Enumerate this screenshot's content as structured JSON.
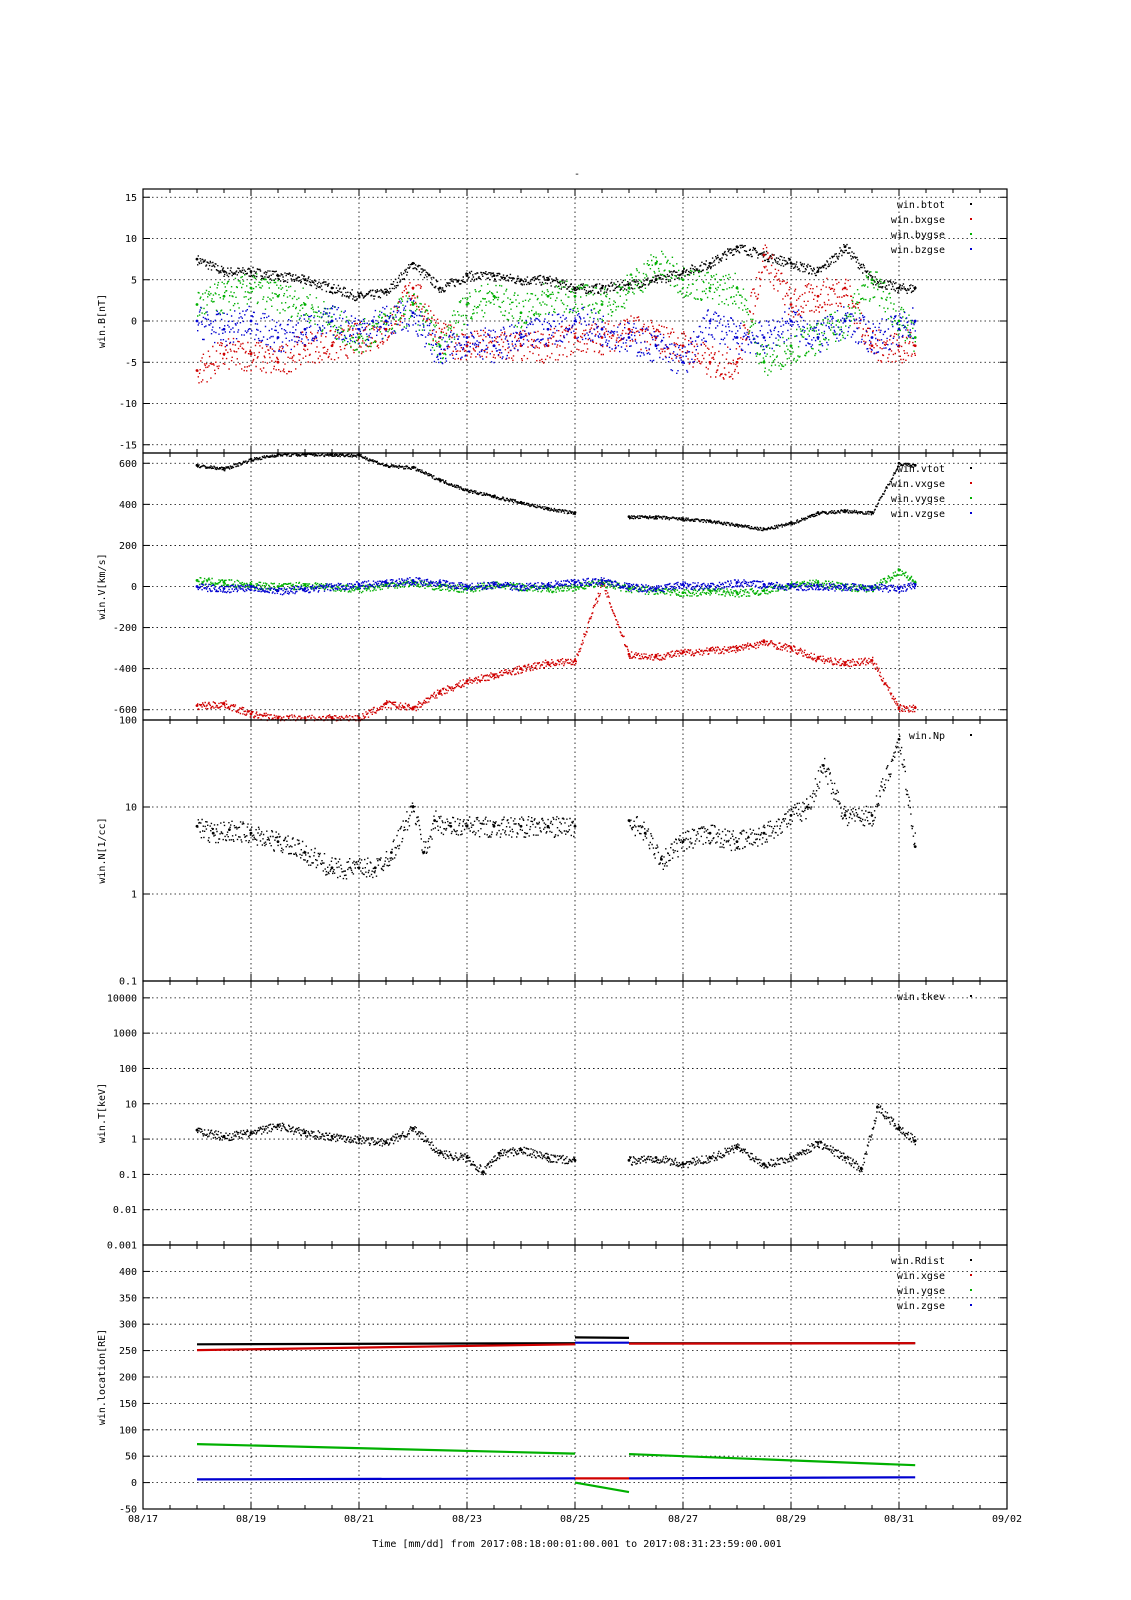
{
  "chart_data": [
    {
      "type": "scatter",
      "ylabel": "win.B[nT]",
      "ylim": [
        -16,
        16
      ],
      "yscale": "linear",
      "yticks": [
        15,
        10,
        5,
        0,
        -5,
        -10,
        -15
      ],
      "ytick_labels": [
        "15",
        "10",
        "5",
        "0",
        "-5",
        "-10",
        "-15"
      ],
      "legend_position": "top-right",
      "series": [
        {
          "name": "win.btot",
          "color": "#000000",
          "x": [
            1.0,
            1.5,
            2.0,
            2.5,
            3.0,
            3.5,
            4.0,
            4.5,
            5.0,
            5.5,
            6.0,
            6.5,
            7.0,
            7.5,
            8.0,
            8.5,
            9.0,
            9.5,
            10.0,
            10.5,
            11.0,
            11.5,
            12.0,
            12.5,
            13.0,
            13.5,
            14.0,
            14.3
          ],
          "y": [
            7.5,
            6,
            6,
            5.5,
            5,
            4,
            3,
            3.5,
            7,
            4,
            5.5,
            5.5,
            5,
            5,
            4,
            4,
            4.5,
            5,
            6,
            7,
            9,
            8,
            7,
            6,
            9,
            5,
            4,
            4
          ]
        },
        {
          "name": "win.bxgse",
          "color": "#d00000",
          "x": [
            1.0,
            1.5,
            2.0,
            2.5,
            3.0,
            3.5,
            4.0,
            4.5,
            5.0,
            5.5,
            6.0,
            6.5,
            7.0,
            7.5,
            8.0,
            8.5,
            9.0,
            9.5,
            10.0,
            10.5,
            11.0,
            11.5,
            12.0,
            12.5,
            13.0,
            13.5,
            14.0,
            14.3
          ],
          "y": [
            -6,
            -4,
            -4,
            -5,
            -3,
            -3,
            -2,
            -1,
            4,
            -2,
            -3,
            -3,
            -3,
            -3,
            -2,
            -2,
            -1,
            -2,
            -3,
            -5,
            -5,
            8,
            2,
            3,
            4,
            -3,
            -3,
            -3
          ]
        },
        {
          "name": "win.bygse",
          "color": "#00b000",
          "x": [
            1.0,
            1.5,
            2.0,
            2.5,
            3.0,
            3.5,
            4.0,
            4.5,
            5.0,
            5.5,
            6.0,
            6.5,
            7.0,
            7.5,
            8.0,
            8.5,
            9.0,
            9.5,
            10.0,
            10.5,
            11.0,
            11.5,
            12.0,
            12.5,
            13.0,
            13.5,
            14.0,
            14.3
          ],
          "y": [
            2,
            3,
            4,
            3,
            2,
            0,
            -2,
            0,
            2,
            -3,
            2,
            3,
            1,
            3,
            3,
            2,
            4,
            7,
            5,
            4,
            4,
            -5,
            -3,
            -2,
            0,
            5,
            0,
            -2
          ]
        },
        {
          "name": "win.bzgse",
          "color": "#0000d0",
          "x": [
            1.0,
            1.5,
            2.0,
            2.5,
            3.0,
            3.5,
            4.0,
            4.5,
            5.0,
            5.5,
            6.0,
            6.5,
            7.0,
            7.5,
            8.0,
            8.5,
            9.0,
            9.5,
            10.0,
            10.5,
            11.0,
            11.5,
            12.0,
            12.5,
            13.0,
            13.5,
            14.0,
            14.3
          ],
          "y": [
            0,
            -1,
            0,
            -2,
            -1,
            0,
            -1,
            0,
            1,
            -4,
            -2,
            -3,
            -2,
            -1,
            0,
            -1,
            -2,
            -3,
            -5,
            0,
            -2,
            -2,
            0,
            -2,
            0,
            -2,
            -1,
            0
          ]
        }
      ]
    },
    {
      "type": "scatter",
      "ylabel": "win.V[km/s]",
      "ylim": [
        -650,
        650
      ],
      "yscale": "linear",
      "yticks": [
        600,
        400,
        200,
        0,
        -200,
        -400,
        -600
      ],
      "ytick_labels": [
        "600",
        "400",
        "200",
        "0",
        "-200",
        "-400",
        "-600"
      ],
      "legend_position": "top-right",
      "series": [
        {
          "name": "win.vtot",
          "color": "#000000",
          "x": [
            1.0,
            1.5,
            2.0,
            2.5,
            3.0,
            3.5,
            4.0,
            4.5,
            5.0,
            5.5,
            6.0,
            6.5,
            7.0,
            7.5,
            8.0,
            null,
            9.0,
            9.5,
            10.0,
            10.5,
            11.0,
            11.5,
            12.0,
            12.5,
            13.0,
            13.5,
            14.0,
            14.3
          ],
          "y": [
            590,
            575,
            620,
            645,
            645,
            645,
            640,
            590,
            580,
            520,
            470,
            440,
            410,
            380,
            360,
            null,
            340,
            340,
            330,
            320,
            300,
            280,
            310,
            360,
            370,
            360,
            600,
            590
          ]
        },
        {
          "name": "win.vxgse",
          "color": "#d00000",
          "x": [
            1.0,
            1.5,
            2.0,
            2.5,
            3.0,
            3.5,
            4.0,
            4.5,
            5.0,
            5.5,
            6.0,
            6.5,
            7.0,
            7.5,
            8.0,
            8.5,
            9.0,
            9.5,
            10.0,
            10.5,
            11.0,
            11.5,
            12.0,
            12.5,
            13.0,
            13.5,
            14.0,
            14.3
          ],
          "y": [
            -580,
            -570,
            -620,
            -640,
            -640,
            -640,
            -640,
            -570,
            -590,
            -510,
            -460,
            -430,
            -400,
            -370,
            -360,
            20,
            -330,
            -340,
            -320,
            -310,
            -300,
            -270,
            -300,
            -350,
            -370,
            -360,
            -590,
            -590
          ]
        },
        {
          "name": "win.vygse",
          "color": "#00b000",
          "x": [
            1.0,
            1.5,
            2.0,
            2.5,
            3.0,
            3.5,
            4.0,
            4.5,
            5.0,
            5.5,
            6.0,
            6.5,
            7.0,
            7.5,
            8.0,
            8.5,
            9.0,
            9.5,
            10.0,
            10.5,
            11.0,
            11.5,
            12.0,
            12.5,
            13.0,
            13.5,
            14.0,
            14.3
          ],
          "y": [
            30,
            20,
            10,
            0,
            10,
            0,
            -10,
            10,
            20,
            0,
            -10,
            10,
            0,
            -10,
            0,
            20,
            -10,
            -20,
            -30,
            -20,
            -30,
            -20,
            10,
            20,
            0,
            -10,
            80,
            20
          ]
        },
        {
          "name": "win.vzgse",
          "color": "#0000d0",
          "x": [
            1.0,
            1.5,
            2.0,
            2.5,
            3.0,
            3.5,
            4.0,
            4.5,
            5.0,
            5.5,
            6.0,
            6.5,
            7.0,
            7.5,
            8.0,
            8.5,
            9.0,
            9.5,
            10.0,
            10.5,
            11.0,
            11.5,
            12.0,
            12.5,
            13.0,
            13.5,
            14.0,
            14.3
          ],
          "y": [
            0,
            -10,
            0,
            -20,
            -10,
            0,
            10,
            20,
            30,
            20,
            0,
            10,
            0,
            10,
            20,
            30,
            0,
            -10,
            10,
            0,
            20,
            10,
            0,
            0,
            0,
            0,
            -10,
            10
          ]
        }
      ]
    },
    {
      "type": "scatter",
      "ylabel": "win.N[1/cc]",
      "ylim": [
        0.1,
        100
      ],
      "yscale": "log",
      "yticks": [
        100,
        10,
        1,
        0.1
      ],
      "ytick_labels": [
        "100",
        "10",
        "1",
        "0.1"
      ],
      "legend_position": "top-right",
      "series": [
        {
          "name": "win.Np",
          "color": "#000000",
          "x": [
            1.0,
            1.3,
            1.6,
            2.0,
            2.5,
            3.0,
            3.5,
            4.0,
            4.3,
            4.6,
            5.0,
            5.2,
            5.4,
            5.7,
            6.0,
            6.5,
            7.0,
            7.5,
            8.0,
            null,
            9.0,
            9.3,
            9.6,
            10.0,
            10.5,
            11.0,
            11.5,
            12.0,
            12.3,
            12.6,
            13.0,
            13.5,
            14.0,
            14.3
          ],
          "y": [
            6,
            5,
            5.5,
            5,
            4,
            3,
            2,
            2,
            2,
            3,
            10,
            3,
            7,
            6,
            6,
            6,
            6,
            6,
            6,
            null,
            7,
            5,
            2.5,
            4,
            5,
            4,
            5,
            8,
            10,
            30,
            8,
            8,
            60,
            3.5
          ]
        }
      ]
    },
    {
      "type": "scatter",
      "ylabel": "win.T[keV]",
      "ylim": [
        0.001,
        30000
      ],
      "yscale": "log",
      "yticks": [
        10000,
        1000,
        100,
        10,
        1,
        0.1,
        0.01,
        0.001
      ],
      "ytick_labels": [
        "10000",
        "1000",
        "100",
        "10",
        "1",
        "0.1",
        "0.01",
        "0.001"
      ],
      "legend_position": "top-right",
      "series": [
        {
          "name": "win.tkev",
          "color": "#000000",
          "x": [
            1.0,
            1.5,
            2.0,
            2.5,
            3.0,
            3.5,
            4.0,
            4.5,
            5.0,
            5.5,
            6.0,
            6.3,
            6.6,
            7.0,
            7.5,
            8.0,
            null,
            9.0,
            9.5,
            10.0,
            10.5,
            11.0,
            11.5,
            12.0,
            12.5,
            13.0,
            13.3,
            13.6,
            14.0,
            14.3
          ],
          "y": [
            1.8,
            1.2,
            1.5,
            2.5,
            1.5,
            1.2,
            1,
            0.8,
            2,
            0.4,
            0.3,
            0.12,
            0.4,
            0.5,
            0.3,
            0.25,
            null,
            0.25,
            0.3,
            0.2,
            0.3,
            0.6,
            0.2,
            0.3,
            0.8,
            0.3,
            0.15,
            8,
            2,
            0.9
          ]
        }
      ]
    },
    {
      "type": "line",
      "ylabel": "win.location[RE]",
      "ylim": [
        -50,
        450
      ],
      "yscale": "linear",
      "yticks": [
        400,
        350,
        300,
        250,
        200,
        150,
        100,
        50,
        0,
        -50
      ],
      "ytick_labels": [
        "400",
        "350",
        "300",
        "250",
        "200",
        "150",
        "100",
        "50",
        "0",
        "-50"
      ],
      "legend_position": "top-right",
      "series": [
        {
          "name": "win.Rdist",
          "color": "#000000",
          "x": [
            1.0,
            8.0,
            8.0,
            9.0,
            9.0,
            14.3
          ],
          "y": [
            262,
            264,
            275,
            274,
            264,
            264
          ]
        },
        {
          "name": "win.xgse",
          "color": "#d00000",
          "x": [
            1.0,
            8.0,
            8.0,
            9.0,
            9.0,
            14.3
          ],
          "y": [
            251,
            262,
            8,
            8,
            263,
            264
          ]
        },
        {
          "name": "win.ygse",
          "color": "#00b000",
          "x": [
            1.0,
            8.0,
            8.0,
            9.0,
            9.0,
            14.3
          ],
          "y": [
            73,
            55,
            0,
            -18,
            54,
            33
          ]
        },
        {
          "name": "win.zgse",
          "color": "#0000d0",
          "x": [
            1.0,
            8.0,
            8.0,
            9.0,
            9.0,
            14.3
          ],
          "y": [
            6,
            8,
            265,
            265,
            8,
            10
          ]
        }
      ]
    }
  ],
  "xaxis": {
    "xlim": [
      0,
      16
    ],
    "ticks": [
      0,
      2,
      4,
      6,
      8,
      10,
      12,
      14,
      16
    ],
    "tick_labels": [
      "08/17",
      "08/19",
      "08/21",
      "08/23",
      "08/25",
      "08/27",
      "08/29",
      "08/31",
      "09/02"
    ]
  },
  "title_mark": "-",
  "footer": "Time [mm/dd]  from 2017:08:18:00:01:00.001  to  2017:08:31:23:59:00.001"
}
